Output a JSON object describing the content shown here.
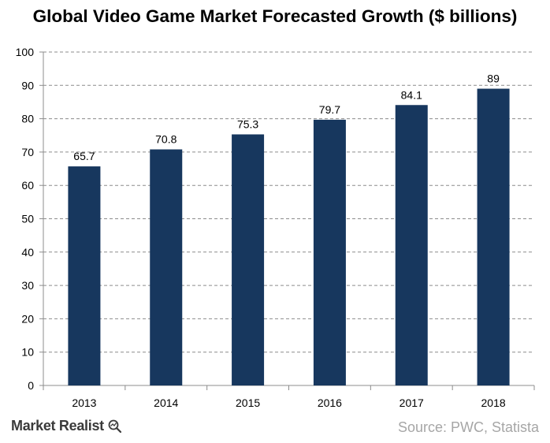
{
  "chart_data": {
    "type": "bar",
    "title": "Global Video Game Market Forecasted Growth ($ billions)",
    "categories": [
      "2013",
      "2014",
      "2015",
      "2016",
      "2017",
      "2018"
    ],
    "values": [
      65.7,
      70.8,
      75.3,
      79.7,
      84.1,
      89
    ],
    "value_labels": [
      "65.7",
      "70.8",
      "75.3",
      "79.7",
      "84.1",
      "89"
    ],
    "ylim": [
      0,
      100
    ],
    "yticks": [
      0,
      10,
      20,
      30,
      40,
      50,
      60,
      70,
      80,
      90,
      100
    ],
    "grid": true,
    "bar_color": "#17375e"
  },
  "footer": {
    "brand": "Market Realist",
    "brand_icon": "magnifier-chart-icon",
    "source": "Source: PWC, Statista"
  }
}
